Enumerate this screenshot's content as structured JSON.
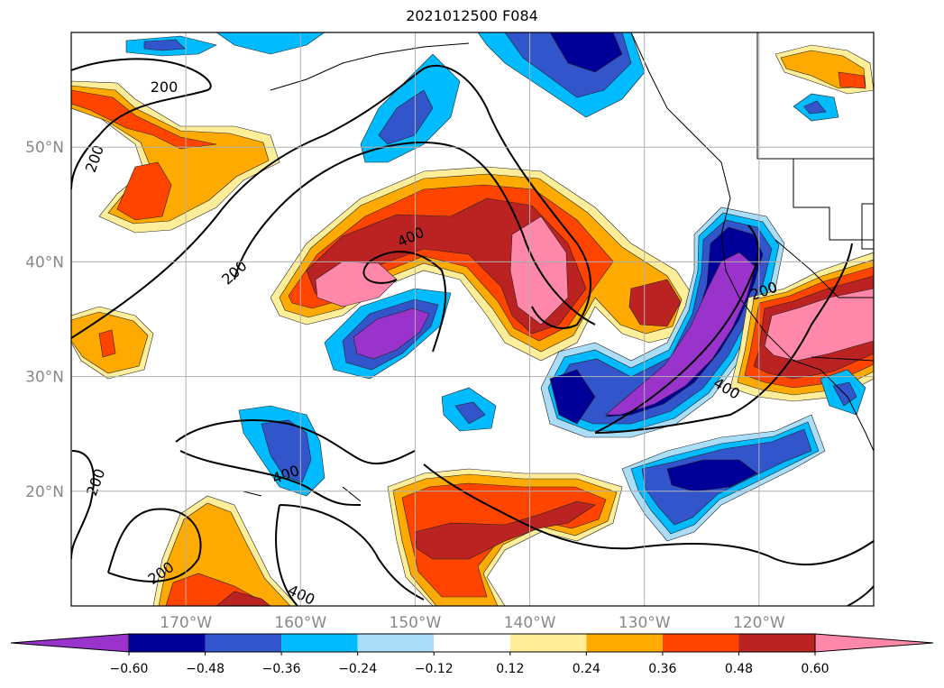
{
  "title": "2021012500 F084",
  "map": {
    "projection": "lat-lon",
    "lon_range": [
      -180,
      -110
    ],
    "lat_range": [
      10,
      60
    ],
    "grid": true,
    "lat_ticks": [
      {
        "value": 50,
        "label": "50°N"
      },
      {
        "value": 40,
        "label": "40°N"
      },
      {
        "value": 30,
        "label": "30°N"
      },
      {
        "value": 20,
        "label": "20°N"
      }
    ],
    "lon_ticks": [
      {
        "value": -170,
        "label": "170°W"
      },
      {
        "value": -160,
        "label": "160°W"
      },
      {
        "value": -150,
        "label": "150°W"
      },
      {
        "value": -140,
        "label": "140°W"
      },
      {
        "value": -130,
        "label": "130°W"
      },
      {
        "value": -120,
        "label": "120°W"
      }
    ],
    "contour_labels": [
      {
        "text": "200",
        "lon": -171.9,
        "lat": 55.3,
        "rot": 0
      },
      {
        "text": "200",
        "lon": -178.0,
        "lat": 49.0,
        "rot": -70
      },
      {
        "text": "400",
        "lon": -150.4,
        "lat": 42.2,
        "rot": -25
      },
      {
        "text": "200",
        "lon": -165.8,
        "lat": 39.1,
        "rot": -42
      },
      {
        "text": "200",
        "lon": -119.6,
        "lat": 37.5,
        "rot": -20
      },
      {
        "text": "400",
        "lon": -122.8,
        "lat": 29.0,
        "rot": 30
      },
      {
        "text": "400",
        "lon": -161.3,
        "lat": 21.5,
        "rot": -20
      },
      {
        "text": "200",
        "lon": -177.9,
        "lat": 20.8,
        "rot": -70
      },
      {
        "text": "200",
        "lon": -172.2,
        "lat": 12.9,
        "rot": -35
      },
      {
        "text": "400",
        "lon": -159.9,
        "lat": 11.0,
        "rot": 25
      }
    ]
  },
  "legend": {
    "colors": [
      "#9933cc",
      "#000099",
      "#3355cc",
      "#00bbff",
      "#aaddf8",
      "#ffffff",
      "#ffee99",
      "#ffaa00",
      "#ff4400",
      "#bb2222",
      "#ff88aa"
    ],
    "tick_labels": [
      "−0.60",
      "−0.48",
      "−0.36",
      "−0.24",
      "−0.12",
      "0.12",
      "0.24",
      "0.36",
      "0.48",
      "0.60"
    ],
    "extend": "both"
  }
}
